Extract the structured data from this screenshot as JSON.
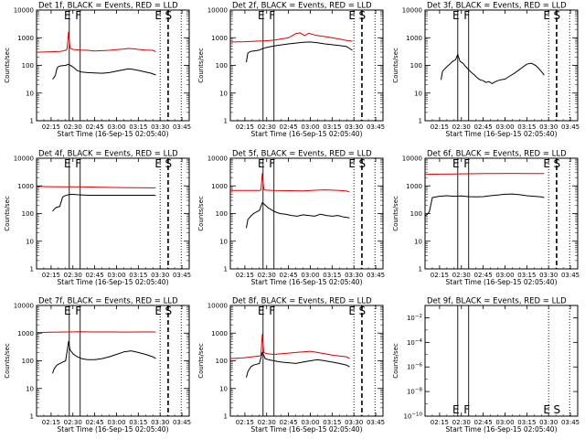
{
  "figure": {
    "x_tick_labels": [
      "02:15",
      "02:30",
      "02:45",
      "03:00",
      "03:15",
      "03:30",
      "03:45"
    ],
    "x_axis_label": "Start Time (16-Sep-15 02:05:40)",
    "y_axis_label": "Counts/sec",
    "y_tick_labels": [
      "1",
      "10",
      "100",
      "1000",
      "10000"
    ],
    "colors": {
      "events": "#000000",
      "lld": "#e00000",
      "axes": "#000000"
    }
  },
  "chart_data": [
    {
      "type": "line",
      "title": "Det 1f, BLACK = Events, RED = LLD",
      "x_unit": "minutes after 02:05:40",
      "xlim": [
        0,
        105
      ],
      "ylim": [
        1,
        10000
      ],
      "y_scale": "log",
      "markers": [
        {
          "label": "E",
          "x": 22.5
        },
        {
          "label": "F",
          "x": 30
        },
        {
          "label": "E",
          "x": 85
        },
        {
          "label": "S",
          "x": 92
        }
      ],
      "solid_lines_x": [
        22.5,
        30
      ],
      "dotted_lines_x": [
        85,
        99.5
      ],
      "dashed_lines_x": [
        90.5
      ],
      "series": [
        {
          "color": "#000000",
          "x": [
            11,
            12,
            13,
            13.5,
            14,
            14.5,
            15,
            16,
            18,
            20,
            22,
            24,
            26,
            28,
            29,
            31,
            35,
            40,
            45,
            50,
            55,
            60,
            63,
            66,
            70,
            73,
            76,
            79,
            82
          ],
          "y": [
            32,
            36,
            45,
            60,
            75,
            85,
            90,
            95,
            98,
            100,
            110,
            95,
            80,
            65,
            62,
            58,
            55,
            53,
            52,
            55,
            62,
            70,
            75,
            72,
            66,
            61,
            56,
            52,
            45
          ]
        },
        {
          "color": "#e00000",
          "x": [
            0,
            10,
            16,
            18,
            20,
            21,
            22,
            23,
            25,
            30,
            35,
            40,
            45,
            50,
            55,
            60,
            63,
            66,
            70,
            75,
            80,
            82
          ],
          "y": [
            300,
            310,
            320,
            330,
            350,
            400,
            1600,
            420,
            380,
            360,
            350,
            330,
            340,
            350,
            370,
            390,
            410,
            400,
            380,
            360,
            350,
            310
          ]
        }
      ]
    },
    {
      "type": "line",
      "title": "Det 2f, BLACK = Events, RED = LLD",
      "x_unit": "minutes after 02:05:40",
      "xlim": [
        0,
        105
      ],
      "ylim": [
        1,
        10000
      ],
      "y_scale": "log",
      "markers": [
        {
          "label": "E",
          "x": 22.5
        },
        {
          "label": "F",
          "x": 30
        },
        {
          "label": "E",
          "x": 85
        },
        {
          "label": "S",
          "x": 92
        }
      ],
      "solid_lines_x": [
        22.5,
        30
      ],
      "dotted_lines_x": [
        85,
        99.5
      ],
      "dashed_lines_x": [
        90.5
      ],
      "series": [
        {
          "color": "#000000",
          "x": [
            11,
            12,
            14,
            16,
            18,
            20,
            22,
            24,
            28,
            32,
            36,
            40,
            45,
            50,
            55,
            60,
            65,
            70,
            75,
            80,
            84
          ],
          "y": [
            130,
            280,
            320,
            330,
            340,
            360,
            400,
            430,
            480,
            520,
            560,
            600,
            640,
            680,
            700,
            660,
            600,
            560,
            520,
            480,
            350
          ]
        },
        {
          "color": "#e00000",
          "x": [
            0,
            10,
            15,
            20,
            25,
            30,
            35,
            40,
            45,
            48,
            51,
            54,
            57,
            60,
            65,
            70,
            75,
            80,
            84
          ],
          "y": [
            700,
            720,
            740,
            760,
            780,
            820,
            900,
            1000,
            1400,
            1500,
            1200,
            1450,
            1300,
            1200,
            1100,
            1000,
            900,
            800,
            750
          ]
        }
      ]
    },
    {
      "type": "line",
      "title": "Det 3f, BLACK = Events, RED = LLD",
      "x_unit": "minutes after 02:05:40",
      "xlim": [
        0,
        105
      ],
      "ylim": [
        1,
        10000
      ],
      "y_scale": "log",
      "markers": [
        {
          "label": "E",
          "x": 22.5
        },
        {
          "label": "F",
          "x": 30
        },
        {
          "label": "E",
          "x": 85
        },
        {
          "label": "S",
          "x": 92
        }
      ],
      "solid_lines_x": [
        22.5,
        30
      ],
      "dotted_lines_x": [
        85,
        99.5
      ],
      "dashed_lines_x": [
        90.5
      ],
      "series": [
        {
          "color": "#000000",
          "x": [
            11,
            12,
            13,
            15,
            17,
            19,
            21,
            22.5,
            24,
            26,
            28,
            30,
            32,
            34,
            36,
            38,
            40,
            42,
            44,
            46,
            48,
            50,
            52,
            55,
            58,
            61,
            64,
            67,
            70,
            73,
            76,
            78,
            80,
            82
          ],
          "y": [
            30,
            60,
            70,
            90,
            110,
            140,
            160,
            250,
            140,
            120,
            90,
            70,
            55,
            45,
            35,
            30,
            28,
            24,
            26,
            22,
            25,
            28,
            30,
            32,
            40,
            50,
            65,
            85,
            110,
            120,
            100,
            80,
            60,
            45
          ]
        }
      ]
    },
    {
      "type": "line",
      "title": "Det 4f, BLACK = Events, RED = LLD",
      "x_unit": "minutes after 02:05:40",
      "xlim": [
        0,
        105
      ],
      "ylim": [
        1,
        10000
      ],
      "y_scale": "log",
      "markers": [
        {
          "label": "E",
          "x": 22.5
        },
        {
          "label": "F",
          "x": 30
        },
        {
          "label": "E",
          "x": 85
        },
        {
          "label": "S",
          "x": 92
        }
      ],
      "solid_lines_x": [
        22.5,
        30
      ],
      "dotted_lines_x": [
        85,
        99.5
      ],
      "dashed_lines_x": [
        90.5
      ],
      "series": [
        {
          "color": "#000000",
          "x": [
            11,
            12,
            13,
            14,
            15,
            16,
            18,
            20,
            22,
            24,
            28,
            32,
            36,
            40,
            45,
            50,
            55,
            60,
            65,
            70,
            75,
            80,
            82
          ],
          "y": [
            120,
            140,
            160,
            170,
            175,
            180,
            400,
            450,
            480,
            500,
            480,
            470,
            460,
            460,
            460,
            460,
            460,
            460,
            460,
            460,
            460,
            460,
            450
          ]
        },
        {
          "color": "#e00000",
          "x": [
            0,
            10,
            20,
            30,
            40,
            50,
            60,
            70,
            80,
            82
          ],
          "y": [
            950,
            940,
            930,
            920,
            900,
            880,
            870,
            860,
            850,
            850
          ]
        }
      ]
    },
    {
      "type": "line",
      "title": "Det 5f, BLACK = Events, RED = LLD",
      "x_unit": "minutes after 02:05:40",
      "xlim": [
        0,
        105
      ],
      "ylim": [
        1,
        10000
      ],
      "y_scale": "log",
      "markers": [
        {
          "label": "E",
          "x": 22.5
        },
        {
          "label": "F",
          "x": 30
        },
        {
          "label": "E",
          "x": 85
        },
        {
          "label": "S",
          "x": 92
        }
      ],
      "solid_lines_x": [
        22.5,
        30
      ],
      "dotted_lines_x": [
        85,
        99.5
      ],
      "dashed_lines_x": [
        90.5
      ],
      "series": [
        {
          "color": "#000000",
          "x": [
            11,
            12,
            14,
            16,
            18,
            20,
            22,
            24,
            26,
            28,
            30,
            34,
            38,
            42,
            46,
            50,
            54,
            58,
            62,
            66,
            70,
            74,
            78,
            82
          ],
          "y": [
            30,
            60,
            80,
            100,
            115,
            130,
            250,
            200,
            160,
            140,
            120,
            100,
            95,
            85,
            80,
            90,
            85,
            80,
            95,
            85,
            80,
            85,
            75,
            70
          ]
        },
        {
          "color": "#e00000",
          "x": [
            0,
            10,
            15,
            20,
            21,
            22,
            23,
            24,
            30,
            40,
            50,
            60,
            65,
            70,
            75,
            80,
            82
          ],
          "y": [
            680,
            680,
            680,
            680,
            700,
            2800,
            750,
            700,
            680,
            670,
            660,
            700,
            720,
            700,
            680,
            650,
            600
          ]
        }
      ]
    },
    {
      "type": "line",
      "title": "Det 6f, BLACK = Events, RED = LLD",
      "x_unit": "minutes after 02:05:40",
      "xlim": [
        0,
        105
      ],
      "ylim": [
        1,
        10000
      ],
      "y_scale": "log",
      "markers": [
        {
          "label": "E",
          "x": 22.5
        },
        {
          "label": "F",
          "x": 30
        },
        {
          "label": "E",
          "x": 85
        },
        {
          "label": "S",
          "x": 92
        }
      ],
      "solid_lines_x": [
        22.5,
        30
      ],
      "dotted_lines_x": [
        85,
        99.5
      ],
      "dashed_lines_x": [
        90.5
      ],
      "series": [
        {
          "color": "#000000",
          "x": [
            0,
            1,
            2,
            3,
            5,
            10,
            15,
            20,
            25,
            30,
            35,
            40,
            45,
            50,
            55,
            60,
            65,
            70,
            75,
            80,
            82
          ],
          "y": [
            80,
            90,
            100,
            120,
            380,
            420,
            440,
            420,
            430,
            410,
            400,
            410,
            440,
            470,
            500,
            510,
            480,
            440,
            420,
            400,
            380
          ]
        },
        {
          "color": "#e00000",
          "x": [
            0,
            10,
            20,
            30,
            40,
            50,
            60,
            70,
            80,
            82
          ],
          "y": [
            2600,
            2650,
            2700,
            2750,
            2780,
            2800,
            2820,
            2800,
            2800,
            2800
          ]
        }
      ]
    },
    {
      "type": "line",
      "title": "Det 7f, BLACK = Events, RED = LLD",
      "x_unit": "minutes after 02:05:40",
      "xlim": [
        0,
        105
      ],
      "ylim": [
        1,
        10000
      ],
      "y_scale": "log",
      "markers": [
        {
          "label": "E",
          "x": 22.5
        },
        {
          "label": "F",
          "x": 30
        },
        {
          "label": "E",
          "x": 85
        },
        {
          "label": "S",
          "x": 92
        }
      ],
      "solid_lines_x": [
        22.5,
        30
      ],
      "dotted_lines_x": [
        85,
        99.5
      ],
      "dashed_lines_x": [
        90.5
      ],
      "series": [
        {
          "color": "#000000",
          "x": [
            11,
            12,
            13,
            14,
            16,
            18,
            20,
            22,
            23,
            25,
            28,
            31,
            35,
            40,
            45,
            50,
            55,
            60,
            65,
            70,
            75,
            80,
            82
          ],
          "y": [
            35,
            50,
            60,
            70,
            80,
            90,
            100,
            500,
            250,
            180,
            140,
            120,
            110,
            110,
            120,
            140,
            170,
            210,
            230,
            200,
            170,
            140,
            120
          ]
        },
        {
          "color": "#e00000",
          "x": [
            0,
            10,
            20,
            30,
            40,
            50,
            60,
            70,
            80,
            82
          ],
          "y": [
            1050,
            1080,
            1100,
            1120,
            1100,
            1100,
            1090,
            1100,
            1100,
            1100
          ]
        }
      ]
    },
    {
      "type": "line",
      "title": "Det 8f, BLACK = Events, RED = LLD",
      "x_unit": "minutes after 02:05:40",
      "xlim": [
        0,
        105
      ],
      "ylim": [
        1,
        10000
      ],
      "y_scale": "log",
      "markers": [
        {
          "label": "E",
          "x": 22.5
        },
        {
          "label": "F",
          "x": 30
        },
        {
          "label": "E",
          "x": 85
        },
        {
          "label": "S",
          "x": 92
        }
      ],
      "solid_lines_x": [
        22.5,
        30
      ],
      "dotted_lines_x": [
        85,
        99.5
      ],
      "dashed_lines_x": [
        90.5
      ],
      "series": [
        {
          "color": "#000000",
          "x": [
            11,
            12,
            14,
            16,
            18,
            20,
            22,
            24,
            26,
            30,
            35,
            40,
            45,
            50,
            55,
            60,
            65,
            70,
            75,
            80,
            82
          ],
          "y": [
            25,
            40,
            60,
            70,
            75,
            80,
            200,
            120,
            110,
            100,
            90,
            85,
            80,
            90,
            100,
            110,
            100,
            90,
            80,
            70,
            60
          ]
        },
        {
          "color": "#e00000",
          "x": [
            0,
            10,
            15,
            20,
            21,
            22,
            23,
            25,
            30,
            35,
            40,
            45,
            50,
            55,
            60,
            65,
            70,
            75,
            80,
            82
          ],
          "y": [
            120,
            130,
            140,
            150,
            160,
            900,
            200,
            180,
            170,
            180,
            190,
            200,
            210,
            220,
            200,
            180,
            160,
            150,
            140,
            120
          ]
        }
      ]
    },
    {
      "type": "line",
      "title": "Det 9f, BLACK = Events, RED = LLD",
      "x_unit": "minutes after 02:05:40",
      "xlim": [
        0,
        105
      ],
      "ylim": [
        1e-10,
        0.1
      ],
      "y_scale": "log",
      "y_tick_exponents": [
        -10,
        -8,
        -6,
        -4,
        -2
      ],
      "markers": [
        {
          "label": "E",
          "x": 22.5
        },
        {
          "label": "F",
          "x": 30
        },
        {
          "label": "E",
          "x": 85
        },
        {
          "label": "S",
          "x": 92
        }
      ],
      "solid_lines_x": [
        22.5,
        30
      ],
      "dotted_lines_x": [
        85,
        99.5
      ],
      "dashed_lines_x": [],
      "series": []
    }
  ]
}
